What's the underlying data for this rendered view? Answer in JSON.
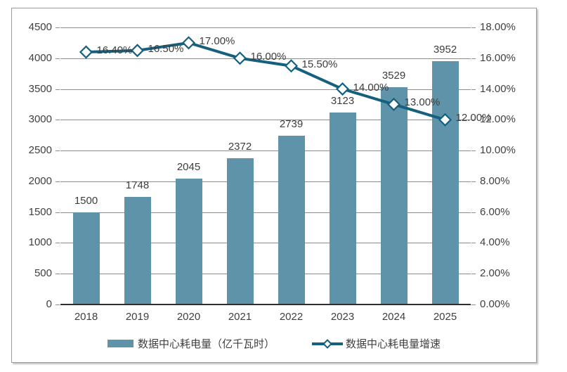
{
  "chart_data": {
    "type": "bar",
    "subtype": "combo-bar-line",
    "title": "",
    "categories": [
      "2018",
      "2019",
      "2020",
      "2021",
      "2022",
      "2023",
      "2024",
      "2025"
    ],
    "series": [
      {
        "name": "数据中心耗电量（亿千瓦时）",
        "type": "bar",
        "axis": "left",
        "values": [
          1500,
          1748,
          2045,
          2372,
          2739,
          3123,
          3529,
          3952
        ],
        "data_labels": [
          "1500",
          "1748",
          "2045",
          "2372",
          "2739",
          "3123",
          "3529",
          "3952"
        ]
      },
      {
        "name": "数据中心耗电量增速",
        "type": "line",
        "axis": "right",
        "marker": "diamond",
        "values": [
          16.4,
          16.5,
          17.0,
          16.0,
          15.5,
          14.0,
          13.0,
          12.0
        ],
        "data_labels": [
          "16.40%",
          "16.50%",
          "17.00%",
          "16.00%",
          "15.50%",
          "14.00%",
          "13.00%",
          "12.00%"
        ]
      }
    ],
    "left_axis": {
      "min": 0,
      "max": 4500,
      "step": 500,
      "tick_labels": [
        "4500",
        "4000",
        "3500",
        "3000",
        "2500",
        "2000",
        "1500",
        "1000",
        "500",
        "0"
      ]
    },
    "right_axis": {
      "min": 0,
      "max": 18,
      "step": 2,
      "tick_labels": [
        "18.00%",
        "16.00%",
        "14.00%",
        "12.00%",
        "10.00%",
        "8.00%",
        "6.00%",
        "4.00%",
        "2.00%",
        "0.00%"
      ]
    },
    "grid": true,
    "legend_position": "bottom"
  },
  "legend": {
    "items": [
      {
        "label": "数据中心耗电量（亿千瓦时）",
        "swatch": "bar"
      },
      {
        "label": "数据中心耗电量增速",
        "swatch": "line-diamond"
      }
    ]
  },
  "colors": {
    "bar": "#5F93A9",
    "line": "#15607E",
    "grid": "#8C8C8C",
    "axis_line": "#2E2E2E",
    "text": "#404040",
    "marker_fill": "#FFFFFF",
    "frame_border": "#9B9B9B"
  }
}
